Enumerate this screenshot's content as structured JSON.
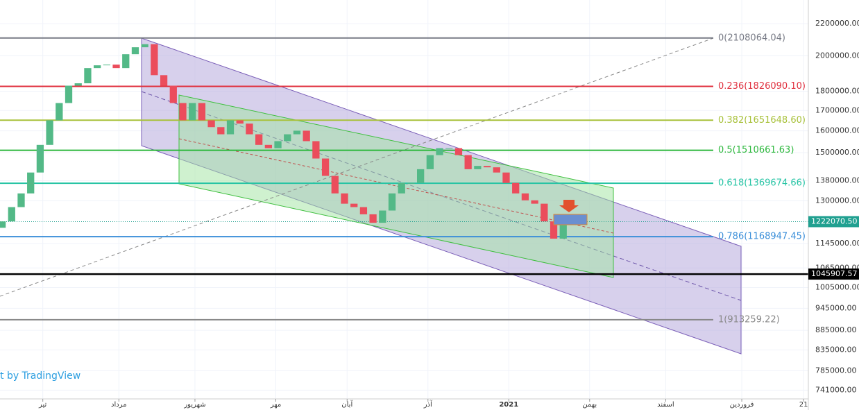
{
  "chart_data": {
    "type": "candlestick",
    "log_scale": true,
    "up_color": "#53b987",
    "down_color": "#eb4d5c",
    "x": [
      0,
      2,
      4,
      6,
      8,
      10,
      12,
      14,
      16,
      18,
      20,
      22,
      24,
      26,
      28,
      30,
      32,
      34,
      36,
      38,
      40,
      42,
      44,
      46,
      48,
      50,
      52,
      54,
      56,
      58,
      60,
      62,
      64,
      66,
      68,
      70,
      72,
      74,
      76,
      78,
      80,
      82,
      84,
      86,
      88,
      90,
      92,
      94,
      96,
      98,
      100,
      102,
      104,
      106,
      108,
      110,
      112,
      114,
      116,
      118
    ],
    "open": [
      1200000,
      1223000,
      1276000,
      1329000,
      1414000,
      1535000,
      1651000,
      1738000,
      1830000,
      1843000,
      1928000,
      1944000,
      1948000,
      1928000,
      2009000,
      2051000,
      2070000,
      1888000,
      1830000,
      1738000,
      1651000,
      1738000,
      1651000,
      1618000,
      1584000,
      1651000,
      1635000,
      1584000,
      1535000,
      1520000,
      1552000,
      1584000,
      1601000,
      1552000,
      1474000,
      1400000,
      1329000,
      1289000,
      1276000,
      1249000,
      1218000,
      1263000,
      1329000,
      1371000,
      1371000,
      1428000,
      1489000,
      1520000,
      1520000,
      1489000,
      1428000,
      1442000,
      1436000,
      1414000,
      1371000,
      1329000,
      1302000,
      1289000,
      1223000,
      1162000
    ],
    "close": [
      1223000,
      1276000,
      1329000,
      1414000,
      1535000,
      1651000,
      1738000,
      1830000,
      1843000,
      1928000,
      1944000,
      1948000,
      1928000,
      2009000,
      2051000,
      2070000,
      1888000,
      1830000,
      1738000,
      1651000,
      1738000,
      1651000,
      1618000,
      1584000,
      1651000,
      1635000,
      1584000,
      1535000,
      1520000,
      1552000,
      1584000,
      1601000,
      1552000,
      1474000,
      1400000,
      1329000,
      1289000,
      1276000,
      1249000,
      1218000,
      1263000,
      1329000,
      1371000,
      1371000,
      1428000,
      1489000,
      1520000,
      1520000,
      1489000,
      1428000,
      1442000,
      1436000,
      1414000,
      1371000,
      1329000,
      1302000,
      1289000,
      1223000,
      1162000,
      1211000
    ],
    "xlim": [
      0,
      170
    ],
    "xticks": [
      {
        "value": 9,
        "label": "تیر"
      },
      {
        "value": 25,
        "label": "مرداد"
      },
      {
        "value": 41,
        "label": "شهریور"
      },
      {
        "value": 58,
        "label": "مهر"
      },
      {
        "value": 73,
        "label": "آبان"
      },
      {
        "value": 90,
        "label": "آذر"
      },
      {
        "value": 107,
        "label": "2021"
      },
      {
        "value": 124,
        "label": "بهمن"
      },
      {
        "value": 140,
        "label": "اسفند"
      },
      {
        "value": 156,
        "label": "فروردین"
      },
      {
        "value": 169,
        "label": "21"
      }
    ],
    "ylim": [
      722000,
      2360000
    ],
    "yticks": [
      {
        "value": 2200000,
        "label": "2200000.00"
      },
      {
        "value": 2000000,
        "label": "2000000.00"
      },
      {
        "value": 1800000,
        "label": "1800000.00"
      },
      {
        "value": 1700000,
        "label": "1700000.00"
      },
      {
        "value": 1600000,
        "label": "1600000.00"
      },
      {
        "value": 1500000,
        "label": "1500000.00"
      },
      {
        "value": 1380000,
        "label": "1380000.00"
      },
      {
        "value": 1300000,
        "label": "1300000.00"
      },
      {
        "value": 1145000,
        "label": "1145000.00"
      },
      {
        "value": 1065000,
        "label": "1065000.00"
      },
      {
        "value": 1005000,
        "label": "1005000.00"
      },
      {
        "value": 945000,
        "label": "945000.00"
      },
      {
        "value": 885000,
        "label": "885000.00"
      },
      {
        "value": 835000,
        "label": "835000.00"
      },
      {
        "value": 785000,
        "label": "785000.00"
      },
      {
        "value": 741000,
        "label": "741000.00"
      }
    ],
    "grid": true,
    "fib_levels": [
      {
        "label": "0(2108064.04)",
        "value": 2108064.04,
        "color": "#787b86"
      },
      {
        "label": "0.236(1826090.10)",
        "value": 1826090.1,
        "color": "#e0303e"
      },
      {
        "label": "0.382(1651648.60)",
        "value": 1651648.6,
        "color": "#a8c13a"
      },
      {
        "label": "0.5(1510661.63)",
        "value": 1510661.63,
        "color": "#2db83d"
      },
      {
        "label": "0.618(1369674.66)",
        "value": 1369674.66,
        "color": "#26c4a4"
      },
      {
        "label": "0.786(1168947.45)",
        "value": 1168947.45,
        "color": "#3b8fd9"
      },
      {
        "label": "1(913259.22)",
        "value": 913259.22,
        "color": "#888888"
      }
    ],
    "price_lines": [
      {
        "label": "1222070.50",
        "value": 1222070.5,
        "color": "#20a090"
      },
      {
        "label": "1045907.57",
        "value": 1045907.57,
        "color": "#000000"
      }
    ],
    "watermark": "t by TradingView"
  }
}
